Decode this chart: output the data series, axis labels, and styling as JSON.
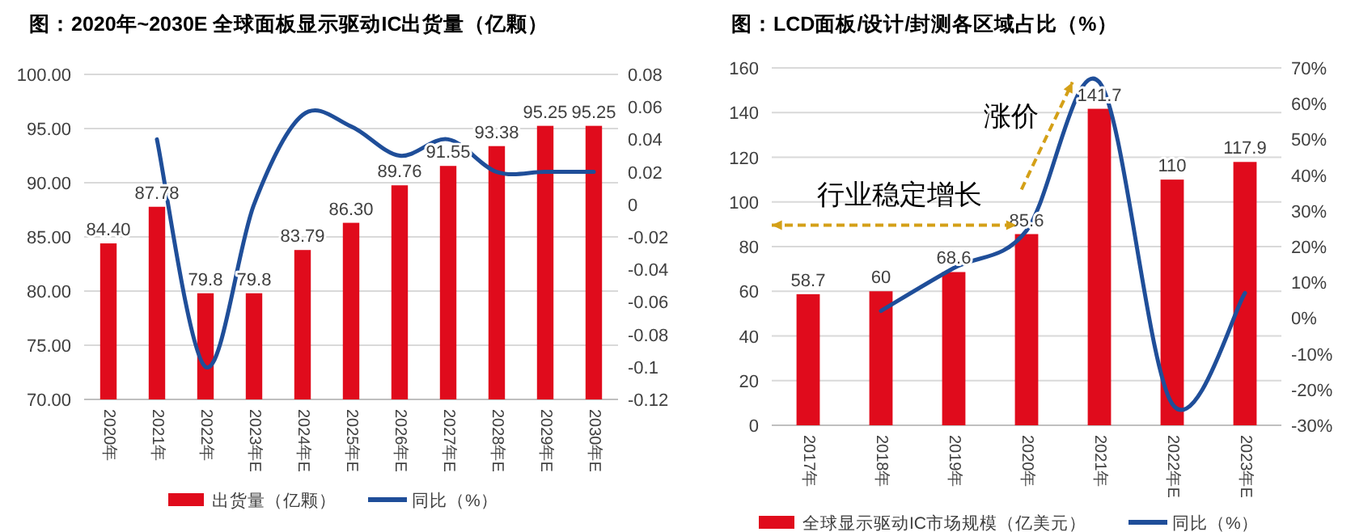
{
  "chart_data": [
    {
      "type": "bar",
      "title": "图：2020年~2030E 全球面板显示驱动IC出货量（亿颗）",
      "categories": [
        "2020年",
        "2021年",
        "2022年",
        "2023年E",
        "2024年E",
        "2025年E",
        "2026年E",
        "2027年E",
        "2028年E",
        "2029年E",
        "2030年E"
      ],
      "series": [
        {
          "name": "出货量（亿颗）",
          "color": "#e00b1c",
          "values": [
            84.4,
            87.78,
            79.8,
            79.8,
            83.79,
            86.3,
            89.76,
            91.55,
            93.38,
            95.25,
            95.25
          ],
          "value_labels": [
            "84.40",
            "87.78",
            "79.8",
            "79.8",
            "83.79",
            "86.30",
            "89.76",
            "91.55",
            "93.38",
            "95.25",
            "95.25"
          ]
        },
        {
          "name": "同比（%）",
          "type": "line",
          "axis": "y2",
          "color": "#1f4e99",
          "values": [
            null,
            0.04,
            -0.1,
            0.0,
            0.055,
            0.048,
            0.03,
            0.04,
            0.02,
            0.02,
            0.02
          ]
        }
      ],
      "ylim": [
        70,
        100
      ],
      "yticks": [
        {
          "value": 70,
          "label": "70.00"
        },
        {
          "value": 75,
          "label": "75.00"
        },
        {
          "value": 80,
          "label": "80.00"
        },
        {
          "value": 85,
          "label": "85.00"
        },
        {
          "value": 90,
          "label": "90.00"
        },
        {
          "value": 95,
          "label": "95.00"
        },
        {
          "value": 100,
          "label": "100.00"
        }
      ],
      "y2lim": [
        -0.12,
        0.08
      ],
      "y2ticks": [
        -0.12,
        -0.1,
        -0.08,
        -0.06,
        -0.04,
        -0.02,
        0,
        0.02,
        0.04,
        0.06,
        0.08
      ],
      "grid": "y",
      "legend": "bottom"
    },
    {
      "type": "bar",
      "title": "图：LCD面板/设计/封测各区域占比（%）",
      "categories": [
        "2017年",
        "2018年",
        "2019年",
        "2020年",
        "2021年",
        "2022年E",
        "2023年E"
      ],
      "series": [
        {
          "name": "全球显示驱动IC市场规模（亿美元）",
          "color": "#e00b1c",
          "values": [
            58.7,
            60,
            68.6,
            85.6,
            141.7,
            110,
            117.9
          ],
          "value_labels": [
            "58.7",
            "60",
            "68.6",
            "85.6",
            "141.7",
            "110",
            "117.9"
          ]
        },
        {
          "name": "同比（%）",
          "type": "line",
          "axis": "y2",
          "color": "#1f4e99",
          "values": [
            null,
            2,
            14,
            24.5,
            66,
            -24,
            7
          ]
        }
      ],
      "ylim": [
        0,
        160
      ],
      "yticks": [
        0,
        20,
        40,
        60,
        80,
        100,
        120,
        140,
        160
      ],
      "y2lim": [
        -30,
        70
      ],
      "y2ticks": [
        {
          "value": -30,
          "label": "-30%"
        },
        {
          "value": -20,
          "label": "-20%"
        },
        {
          "value": -10,
          "label": "-10%"
        },
        {
          "value": 0,
          "label": "0%"
        },
        {
          "value": 10,
          "label": "10%"
        },
        {
          "value": 20,
          "label": "20%"
        },
        {
          "value": 30,
          "label": "30%"
        },
        {
          "value": 40,
          "label": "40%"
        },
        {
          "value": 50,
          "label": "50%"
        },
        {
          "value": 60,
          "label": "60%"
        },
        {
          "value": 70,
          "label": "70%"
        }
      ],
      "grid": "y",
      "legend": "bottom",
      "annotations": [
        "行业稳定增长",
        "涨价"
      ]
    }
  ]
}
